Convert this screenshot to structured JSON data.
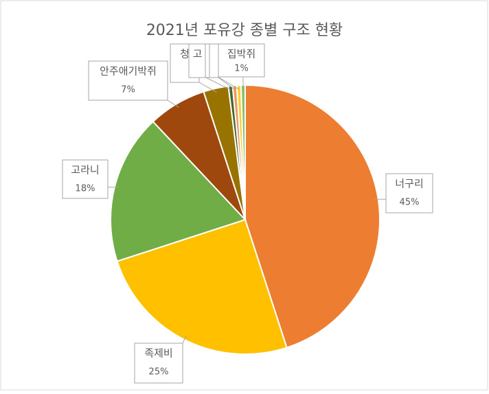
{
  "chart_data": {
    "type": "pie",
    "title": "2021년 포유강 종별 구조 현황",
    "categories": [
      "너구리",
      "족제비",
      "고라니",
      "안주애기박쥐",
      "청",
      "고",
      null,
      null,
      "집박쥐"
    ],
    "values": [
      45,
      25,
      18,
      7,
      3,
      0.5,
      0.5,
      0.5,
      0.5
    ],
    "value_labels": [
      "45%",
      "25%",
      "18%",
      "7%",
      null,
      null,
      null,
      null,
      "1%"
    ],
    "colors": [
      "#ED7D31",
      "#FFC000",
      "#70AD47",
      "#9E480E",
      "#997300",
      "#43682B",
      "#F1975A",
      "#FFCD33",
      "#8CC168"
    ]
  }
}
